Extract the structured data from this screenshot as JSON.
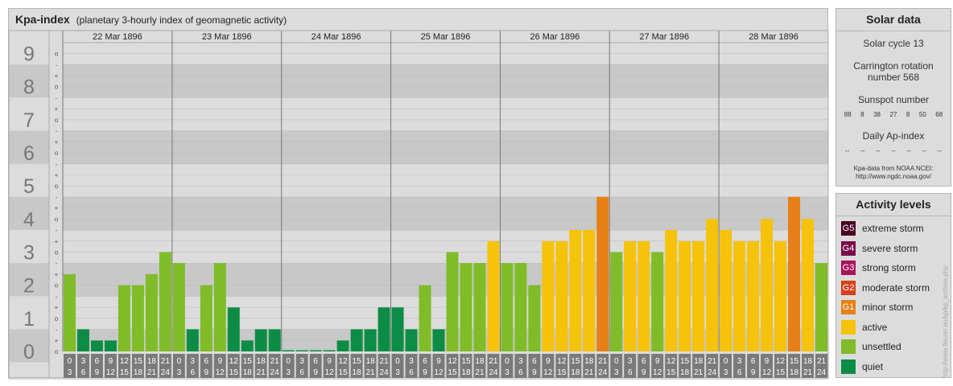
{
  "header": {
    "title": "Kpa-index",
    "subtitle": "(planetary 3-hourly index of geomagnetic activity)"
  },
  "solar": {
    "heading": "Solar data",
    "cycle": "Solar cycle 13",
    "carrington_line1": "Carrington rotation",
    "carrington_line2": "number 568",
    "sunspot_label": "Sunspot number",
    "sunspot_values": [
      "88",
      "8",
      "38",
      "27",
      "8",
      "50",
      "68"
    ],
    "ap_label": "Daily Ap-index",
    "ap_values": [
      "--",
      "--",
      "--",
      "--",
      "--",
      "--",
      "--"
    ],
    "source_line1": "Kpa-data from NOAA NCEI:",
    "source_line2": "http://www.ngdc.noaa.gov/"
  },
  "levels": {
    "heading": "Activity levels",
    "items": [
      {
        "badge": "G5",
        "label": "extreme storm",
        "color": "#4b0025"
      },
      {
        "badge": "G4",
        "label": "severe storm",
        "color": "#7a0a4c"
      },
      {
        "badge": "G3",
        "label": "strong storm",
        "color": "#a8145c"
      },
      {
        "badge": "G2",
        "label": "moderate storm",
        "color": "#d6411c"
      },
      {
        "badge": "G1",
        "label": "minor storm",
        "color": "#e67f16"
      },
      {
        "badge": "",
        "label": "active",
        "color": "#f6c20a"
      },
      {
        "badge": "",
        "label": "unsettled",
        "color": "#7fbc28"
      },
      {
        "badge": "",
        "label": "quiet",
        "color": "#0d8c45"
      }
    ]
  },
  "watermark": "http://www.fleuret.eu/kp/kp_archive.php",
  "chart_data": {
    "type": "bar",
    "days": [
      "22 Mar 1896",
      "23 Mar 1896",
      "24 Mar 1896",
      "25 Mar 1896",
      "26 Mar 1896",
      "27 Mar 1896",
      "28 Mar 1896"
    ],
    "interval_starts": [
      "0",
      "3",
      "6",
      "9",
      "12",
      "15",
      "18",
      "21"
    ],
    "interval_ends": [
      "3",
      "6",
      "9",
      "12",
      "15",
      "18",
      "21",
      "24"
    ],
    "y_ticks": [
      "0",
      "1",
      "2",
      "3",
      "4",
      "5",
      "6",
      "7",
      "8",
      "9"
    ],
    "y_sub_ticks": [
      "-",
      "o",
      "+"
    ],
    "ylim": [
      0,
      9.33
    ],
    "values": [
      2.33,
      0.67,
      0.33,
      0.33,
      2.0,
      2.0,
      2.33,
      3.0,
      2.67,
      0.67,
      2.0,
      2.67,
      1.33,
      0.33,
      0.67,
      0.67,
      0.0,
      0.0,
      0.0,
      0.0,
      0.33,
      0.67,
      0.67,
      1.33,
      1.33,
      0.67,
      2.0,
      0.67,
      3.0,
      2.67,
      2.67,
      3.33,
      2.67,
      2.67,
      2.0,
      3.33,
      3.33,
      3.67,
      3.67,
      4.67,
      3.0,
      3.33,
      3.33,
      3.0,
      3.67,
      3.33,
      3.33,
      4.0,
      3.67,
      3.33,
      3.33,
      4.0,
      3.33,
      4.67,
      4.0,
      2.67
    ],
    "colors": {
      "quiet": "#0d8c45",
      "unsettled": "#7fbc28",
      "active": "#f6c20a",
      "G1": "#e67f16",
      "grid_dark": "#c8c8c8",
      "grid_light": "#dcdcdc",
      "axis_box": "#7a7a7a"
    }
  }
}
